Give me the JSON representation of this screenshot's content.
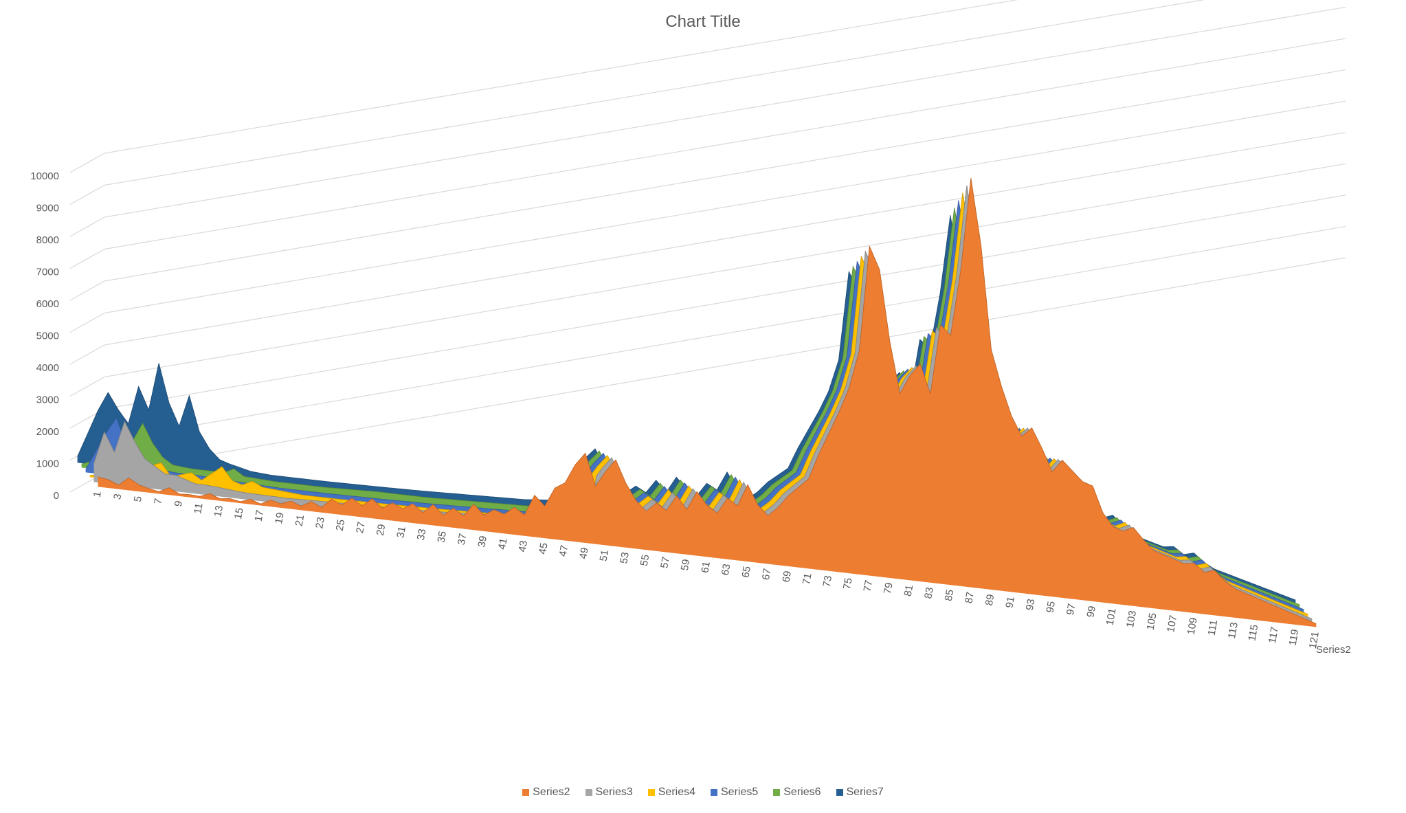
{
  "chart_data": {
    "type": "area",
    "subtype": "3d-area",
    "title": "Chart Title",
    "ylim": [
      0,
      10000
    ],
    "yticks": [
      "0",
      "1000",
      "2000",
      "3000",
      "4000",
      "5000",
      "6000",
      "7000",
      "8000",
      "9000",
      "10000"
    ],
    "x_range": [
      1,
      121
    ],
    "x_tick_step": 2,
    "depth_label": "Series2",
    "grid": true,
    "legend": "bottom",
    "series": [
      {
        "name": "Series2",
        "color": "#ED7D31",
        "keypoints": [
          [
            1,
            300
          ],
          [
            2,
            250
          ],
          [
            3,
            120
          ],
          [
            4,
            380
          ],
          [
            5,
            200
          ],
          [
            6,
            120
          ],
          [
            7,
            60
          ],
          [
            8,
            220
          ],
          [
            9,
            60
          ],
          [
            10,
            80
          ],
          [
            11,
            60
          ],
          [
            12,
            180
          ],
          [
            13,
            60
          ],
          [
            14,
            100
          ],
          [
            15,
            40
          ],
          [
            16,
            150
          ],
          [
            17,
            40
          ],
          [
            18,
            200
          ],
          [
            19,
            120
          ],
          [
            20,
            240
          ],
          [
            21,
            120
          ],
          [
            22,
            300
          ],
          [
            23,
            150
          ],
          [
            24,
            450
          ],
          [
            25,
            300
          ],
          [
            26,
            550
          ],
          [
            27,
            350
          ],
          [
            28,
            600
          ],
          [
            29,
            350
          ],
          [
            30,
            550
          ],
          [
            31,
            400
          ],
          [
            32,
            600
          ],
          [
            33,
            350
          ],
          [
            34,
            650
          ],
          [
            35,
            350
          ],
          [
            36,
            600
          ],
          [
            37,
            400
          ],
          [
            38,
            800
          ],
          [
            39,
            500
          ],
          [
            40,
            700
          ],
          [
            41,
            600
          ],
          [
            42,
            850
          ],
          [
            43,
            650
          ],
          [
            44,
            1300
          ],
          [
            45,
            1000
          ],
          [
            46,
            1600
          ],
          [
            47,
            1800
          ],
          [
            48,
            2400
          ],
          [
            49,
            2800
          ],
          [
            50,
            1800
          ],
          [
            51,
            2300
          ],
          [
            52,
            2700
          ],
          [
            53,
            2000
          ],
          [
            54,
            1500
          ],
          [
            55,
            1200
          ],
          [
            56,
            1500
          ],
          [
            57,
            1300
          ],
          [
            58,
            1800
          ],
          [
            59,
            1400
          ],
          [
            60,
            2000
          ],
          [
            61,
            1600
          ],
          [
            62,
            1400
          ],
          [
            63,
            1900
          ],
          [
            64,
            1700
          ],
          [
            65,
            2400
          ],
          [
            66,
            1800
          ],
          [
            67,
            1500
          ],
          [
            68,
            1800
          ],
          [
            69,
            2200
          ],
          [
            70,
            2500
          ],
          [
            71,
            2800
          ],
          [
            72,
            3600
          ],
          [
            73,
            4300
          ],
          [
            74,
            5000
          ],
          [
            75,
            5800
          ],
          [
            76,
            7000
          ],
          [
            77,
            10300
          ],
          [
            78,
            9600
          ],
          [
            79,
            7400
          ],
          [
            80,
            5800
          ],
          [
            81,
            6400
          ],
          [
            82,
            6800
          ],
          [
            83,
            5900
          ],
          [
            84,
            8100
          ],
          [
            85,
            7800
          ],
          [
            86,
            9900
          ],
          [
            87,
            12800
          ],
          [
            88,
            10700
          ],
          [
            89,
            7500
          ],
          [
            90,
            6400
          ],
          [
            91,
            5500
          ],
          [
            92,
            4900
          ],
          [
            93,
            5200
          ],
          [
            94,
            4600
          ],
          [
            95,
            3900
          ],
          [
            96,
            4300
          ],
          [
            97,
            4000
          ],
          [
            98,
            3700
          ],
          [
            99,
            3600
          ],
          [
            100,
            2800
          ],
          [
            101,
            2400
          ],
          [
            102,
            2300
          ],
          [
            103,
            2450
          ],
          [
            104,
            2100
          ],
          [
            105,
            1800
          ],
          [
            106,
            1700
          ],
          [
            107,
            1600
          ],
          [
            108,
            1500
          ],
          [
            109,
            1550
          ],
          [
            110,
            1300
          ],
          [
            111,
            1400
          ],
          [
            112,
            1100
          ],
          [
            113,
            900
          ],
          [
            114,
            800
          ],
          [
            115,
            700
          ],
          [
            116,
            600
          ],
          [
            117,
            500
          ],
          [
            118,
            400
          ],
          [
            119,
            300
          ],
          [
            120,
            200
          ],
          [
            121,
            100
          ]
        ]
      },
      {
        "name": "Series3",
        "color": "#A5A5A5",
        "keypoints": [
          [
            1,
            600
          ],
          [
            2,
            1600
          ],
          [
            3,
            1000
          ],
          [
            4,
            2000
          ],
          [
            5,
            1400
          ],
          [
            6,
            900
          ],
          [
            7,
            700
          ],
          [
            8,
            500
          ],
          [
            9,
            500
          ],
          [
            10,
            400
          ],
          [
            11,
            300
          ],
          [
            12,
            300
          ],
          [
            13,
            280
          ],
          [
            14,
            250
          ],
          [
            15,
            220
          ],
          [
            16,
            200
          ],
          [
            20,
            180
          ],
          [
            25,
            220
          ],
          [
            30,
            250
          ],
          [
            35,
            300
          ],
          [
            40,
            400
          ],
          [
            45,
            600
          ],
          [
            50,
            800
          ]
        ]
      },
      {
        "name": "Series4",
        "color": "#FFC000",
        "keypoints": [
          [
            1,
            50
          ],
          [
            5,
            300
          ],
          [
            8,
            700
          ],
          [
            9,
            300
          ],
          [
            11,
            500
          ],
          [
            12,
            300
          ],
          [
            14,
            800
          ],
          [
            15,
            400
          ],
          [
            16,
            300
          ],
          [
            17,
            450
          ],
          [
            18,
            300
          ],
          [
            20,
            250
          ],
          [
            22,
            200
          ],
          [
            25,
            200
          ],
          [
            30,
            220
          ],
          [
            35,
            250
          ],
          [
            40,
            300
          ],
          [
            45,
            400
          ],
          [
            50,
            500
          ]
        ]
      },
      {
        "name": "Series5",
        "color": "#4472C4",
        "keypoints": [
          [
            1,
            100
          ],
          [
            3,
            1300
          ],
          [
            4,
            1800
          ],
          [
            5,
            1000
          ],
          [
            6,
            600
          ],
          [
            7,
            400
          ],
          [
            8,
            350
          ],
          [
            10,
            300
          ],
          [
            12,
            300
          ],
          [
            15,
            250
          ],
          [
            20,
            200
          ],
          [
            25,
            200
          ],
          [
            30,
            220
          ],
          [
            35,
            250
          ],
          [
            40,
            300
          ],
          [
            45,
            350
          ],
          [
            50,
            450
          ]
        ]
      },
      {
        "name": "Series6",
        "color": "#70AD47",
        "keypoints": [
          [
            1,
            100
          ],
          [
            4,
            500
          ],
          [
            6,
            1000
          ],
          [
            7,
            1600
          ],
          [
            8,
            1000
          ],
          [
            9,
            600
          ],
          [
            10,
            400
          ],
          [
            12,
            350
          ],
          [
            15,
            350
          ],
          [
            16,
            500
          ],
          [
            17,
            300
          ],
          [
            20,
            250
          ],
          [
            25,
            250
          ],
          [
            30,
            300
          ],
          [
            35,
            300
          ],
          [
            40,
            350
          ],
          [
            45,
            400
          ],
          [
            50,
            500
          ]
        ]
      },
      {
        "name": "Series7",
        "color": "#255E91",
        "keypoints": [
          [
            1,
            200
          ],
          [
            3,
            1700
          ],
          [
            4,
            2300
          ],
          [
            5,
            1800
          ],
          [
            6,
            1400
          ],
          [
            7,
            2600
          ],
          [
            8,
            1900
          ],
          [
            9,
            3400
          ],
          [
            10,
            2200
          ],
          [
            11,
            1500
          ],
          [
            12,
            2500
          ],
          [
            13,
            1400
          ],
          [
            14,
            900
          ],
          [
            15,
            600
          ],
          [
            16,
            500
          ],
          [
            18,
            350
          ],
          [
            20,
            300
          ],
          [
            25,
            300
          ],
          [
            30,
            320
          ],
          [
            35,
            350
          ],
          [
            40,
            400
          ],
          [
            45,
            450
          ],
          [
            50,
            600
          ]
        ]
      }
    ]
  },
  "legend_items": [
    "Series2",
    "Series3",
    "Series4",
    "Series5",
    "Series6",
    "Series7"
  ]
}
